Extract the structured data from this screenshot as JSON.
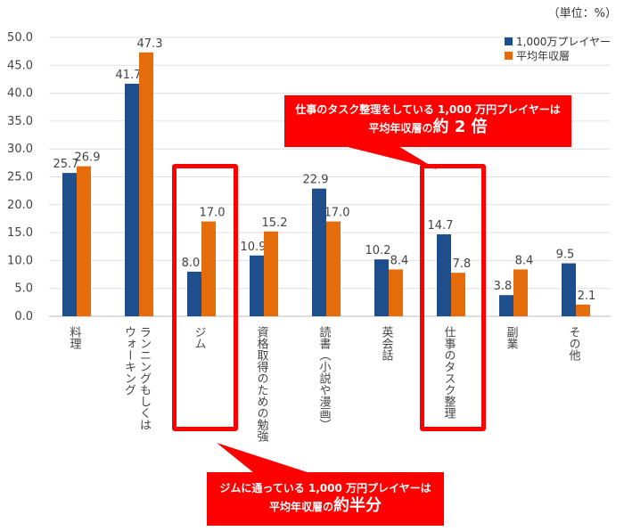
{
  "chart_data": {
    "type": "bar",
    "unit_label": "（単位：%）",
    "categories": [
      "料理",
      "ランニングもしくは\nウォーキング",
      "ジム",
      "資格取得のための勉強",
      "読書（小説や漫画）",
      "英会話",
      "仕事のタスク整理",
      "副業",
      "その他"
    ],
    "series": [
      {
        "name": "1,000万プレイヤー",
        "color": "#1f4e8c",
        "values": [
          25.7,
          41.7,
          8.0,
          10.9,
          22.9,
          10.2,
          14.7,
          3.8,
          9.5
        ]
      },
      {
        "name": "平均年収層",
        "color": "#e46c0a",
        "values": [
          26.9,
          47.3,
          17.0,
          15.2,
          17.0,
          8.4,
          7.8,
          8.4,
          2.1
        ]
      }
    ],
    "ylim": [
      0,
      50
    ],
    "yticks": [
      "0.0",
      "5.0",
      "10.0",
      "15.0",
      "20.0",
      "25.0",
      "30.0",
      "35.0",
      "40.0",
      "45.0",
      "50.0"
    ],
    "grid": true,
    "legend": "top-right"
  },
  "callouts": {
    "task": {
      "line1": "仕事のタスク整理をしている 1,000 万円プレイヤーは",
      "line2_pre": "平均年収層の",
      "line2_big": "約 2 倍"
    },
    "gym": {
      "line1": "ジムに通っている 1,000 万円プレイヤーは",
      "line2_pre": "平均年収層の",
      "line2_big": "約半分"
    }
  }
}
